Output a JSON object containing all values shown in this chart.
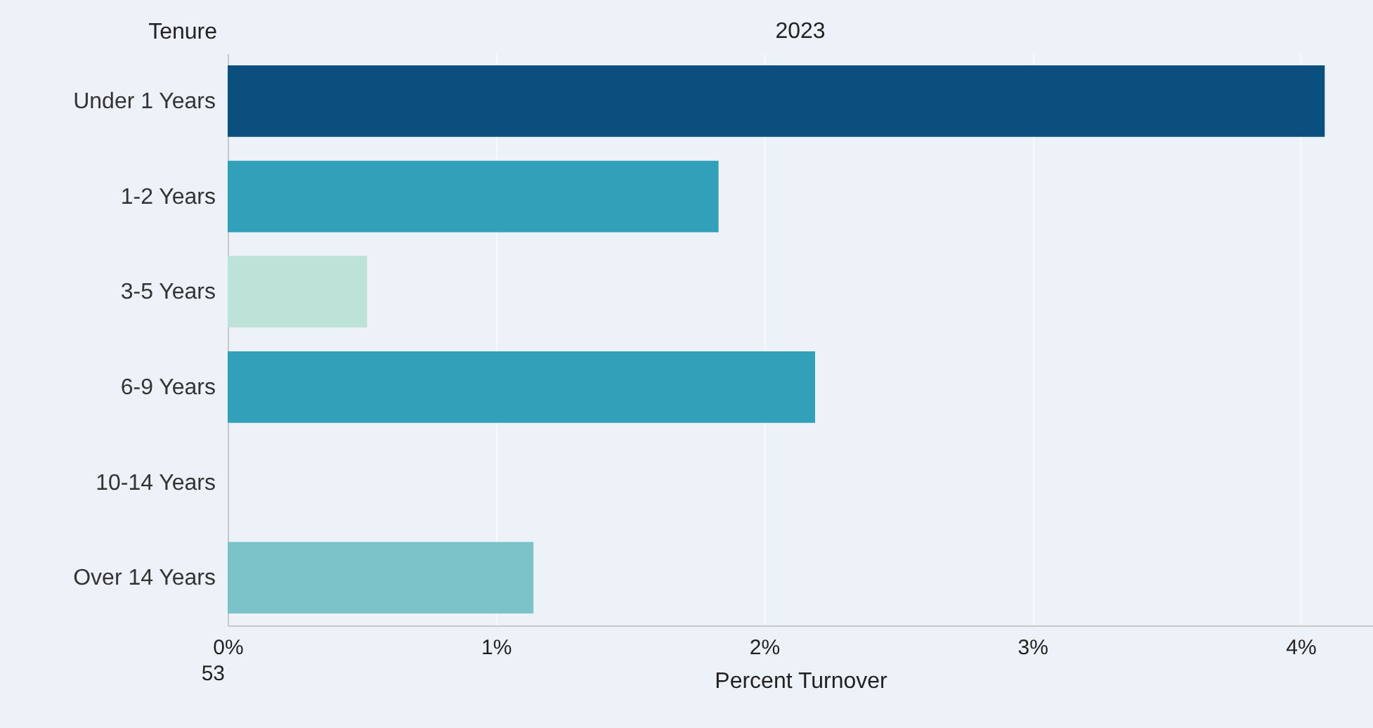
{
  "chart_data": {
    "type": "bar",
    "orientation": "horizontal",
    "title": "2023",
    "ylabel": "Tenure",
    "xlabel": "Percent Turnover",
    "categories": [
      "Under 1 Years",
      "1-2 Years",
      "3-5 Years",
      "6-9 Years",
      "10-14 Years",
      "Over 14 Years"
    ],
    "values": [
      4.09,
      1.83,
      0.52,
      2.19,
      null,
      1.14
    ],
    "colors": [
      "#0a4f7e",
      "#33a0b9",
      "#bde3d9",
      "#33a0b9",
      "#33a0b9",
      "#7cc2c9"
    ],
    "xlim": [
      0,
      4.27
    ],
    "xticks": [
      {
        "value": 0,
        "label": "0%"
      },
      {
        "value": 1,
        "label": "1%"
      },
      {
        "value": 2,
        "label": "2%"
      },
      {
        "value": 3,
        "label": "3%"
      },
      {
        "value": 4,
        "label": "4%"
      }
    ],
    "grid": "x",
    "annotations": [
      "53"
    ]
  }
}
